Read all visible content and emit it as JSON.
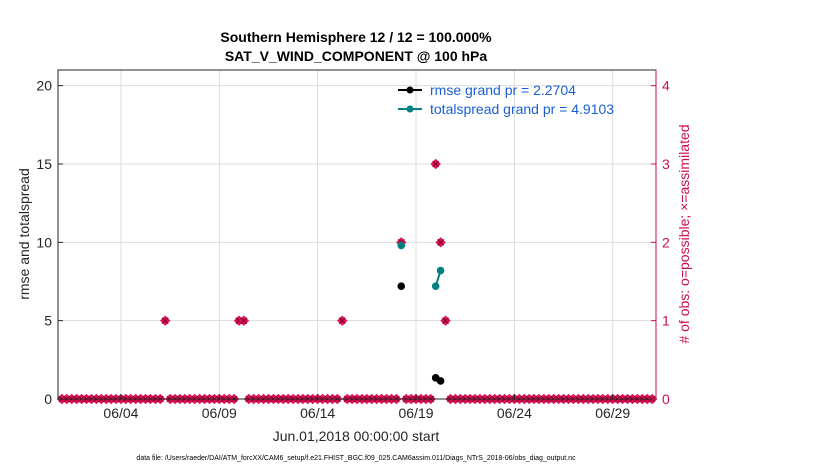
{
  "chart_data": {
    "type": "line",
    "title_line1": "Southern Hemisphere 12 / 12 = 100.000%",
    "title_line2": "SAT_V_WIND_COMPONENT @ 100 hPa",
    "xlabel": "Jun.01,2018 00:00:00 start",
    "ylabel": "rmse and totalspread",
    "ylabel_right": "# of obs: o=possible; ×=assimilated",
    "footnote": "data file: /Users/raeder/DAI/ATM_forcXX/CAM6_setup/f.e21.FHIST_BGC.f09_025.CAM6assim.011/Diags_NTrS_2018-06/obs_diag_output.nc",
    "x_range": [
      0.8,
      31.2
    ],
    "x_ticks": [
      4,
      9,
      14,
      19,
      24,
      29
    ],
    "x_tick_labels": [
      "06/04",
      "06/09",
      "06/14",
      "06/19",
      "06/24",
      "06/29"
    ],
    "ylim": [
      0,
      21
    ],
    "y_ticks": [
      0,
      5,
      10,
      15,
      20
    ],
    "ylim_right": [
      0,
      4.2
    ],
    "y_ticks_right": [
      0,
      1,
      2,
      3,
      4
    ],
    "grid": true,
    "legend_position": "top-right",
    "series": [
      {
        "name": "rmse grand pr = 2.2704",
        "color": "#000000",
        "points": [
          [
            18.25,
            7.2
          ],
          [
            20.0,
            1.35
          ],
          [
            20.25,
            1.15
          ]
        ]
      },
      {
        "name": "totalspread grand pr = 4.9103",
        "color": "#008080",
        "points": [
          [
            18.25,
            9.8
          ],
          [
            20.0,
            7.2
          ],
          [
            20.25,
            8.2
          ]
        ]
      }
    ],
    "obs_series": {
      "color": "#e0105a",
      "step_days": 0.25,
      "start": 1.0,
      "end": 31.0,
      "nonzero": [
        {
          "x": 6.25,
          "count": 1
        },
        {
          "x": 10.0,
          "count": 1
        },
        {
          "x": 10.25,
          "count": 1
        },
        {
          "x": 15.25,
          "count": 1
        },
        {
          "x": 18.25,
          "count": 2
        },
        {
          "x": 20.0,
          "count": 3
        },
        {
          "x": 20.25,
          "count": 2
        },
        {
          "x": 20.5,
          "count": 1
        }
      ]
    }
  }
}
